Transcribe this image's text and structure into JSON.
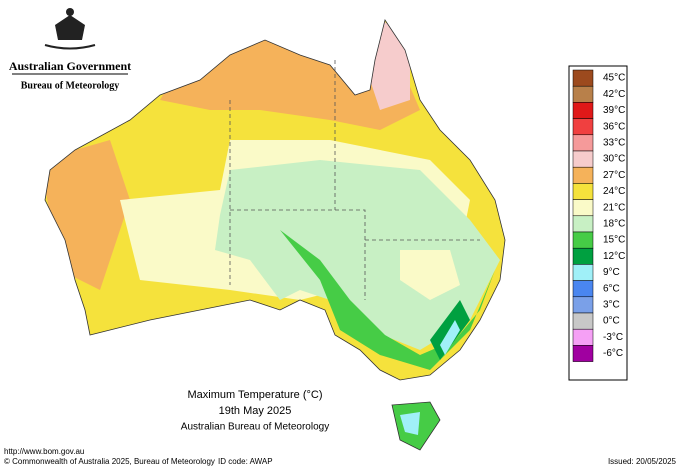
{
  "header": {
    "line1": "Australian Government",
    "line2": "Bureau of Meteorology"
  },
  "legend": {
    "items": [
      {
        "label": "45°C",
        "color": "#9c4a1e"
      },
      {
        "label": "42°C",
        "color": "#b8804a"
      },
      {
        "label": "39°C",
        "color": "#e01818"
      },
      {
        "label": "36°C",
        "color": "#f04040"
      },
      {
        "label": "33°C",
        "color": "#f59a9a"
      },
      {
        "label": "30°C",
        "color": "#f6cccc"
      },
      {
        "label": "27°C",
        "color": "#f5b25a"
      },
      {
        "label": "24°C",
        "color": "#f5e23c"
      },
      {
        "label": "21°C",
        "color": "#fafac8"
      },
      {
        "label": "18°C",
        "color": "#c8f0c4"
      },
      {
        "label": "15°C",
        "color": "#46cc46"
      },
      {
        "label": "12°C",
        "color": "#00a040"
      },
      {
        "label": "9°C",
        "color": "#a0f0f8"
      },
      {
        "label": "6°C",
        "color": "#4a86f0"
      },
      {
        "label": "3°C",
        "color": "#7aa0e8"
      },
      {
        "label": "0°C",
        "color": "#c8c8c8"
      },
      {
        "label": "-3°C",
        "color": "#f5a0f5"
      },
      {
        "label": "-6°C",
        "color": "#a000a0"
      }
    ]
  },
  "title": {
    "line1": "Maximum Temperature (°C)",
    "line2": "19th May 2025",
    "line3": "Australian Bureau of Meteorology"
  },
  "footer": {
    "url": "http://www.bom.gov.au",
    "copyright": "© Commonwealth of Australia 2025, Bureau of Meteorology",
    "id": "ID code: AWAP",
    "issued": "Issued: 20/05/2025"
  }
}
